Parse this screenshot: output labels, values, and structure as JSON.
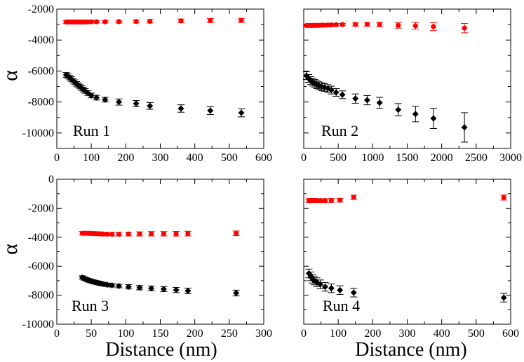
{
  "figure": {
    "shared_xlabel": "Distance (nm)",
    "shared_ylabel": "α"
  },
  "colors": {
    "red_series": "#ff0000",
    "black_series": "#000000"
  },
  "chart_data": [
    {
      "type": "scatter",
      "panel_label": "Run 1",
      "xlim": [
        0,
        600
      ],
      "ylim": [
        -11000,
        -2000
      ],
      "xticks": [
        0,
        100,
        200,
        300,
        400,
        500,
        600
      ],
      "yticks": [
        -10000,
        -8000,
        -6000,
        -4000,
        -2000
      ],
      "series": [
        {
          "color": "red",
          "marker": "circle",
          "x": [
            27,
            32,
            37,
            42,
            47,
            52,
            57,
            62,
            67,
            72,
            77,
            82,
            90,
            100,
            115,
            140,
            180,
            230,
            270,
            360,
            445,
            535
          ],
          "y": [
            -2830,
            -2830,
            -2830,
            -2830,
            -2830,
            -2830,
            -2830,
            -2830,
            -2830,
            -2830,
            -2830,
            -2830,
            -2830,
            -2820,
            -2820,
            -2820,
            -2810,
            -2800,
            -2790,
            -2760,
            -2740,
            -2730
          ],
          "err": [
            80,
            80,
            80,
            80,
            80,
            80,
            80,
            80,
            80,
            80,
            80,
            80,
            80,
            80,
            80,
            80,
            90,
            100,
            110,
            120,
            130,
            130
          ]
        },
        {
          "color": "black",
          "marker": "diamond",
          "x": [
            27,
            32,
            37,
            42,
            47,
            52,
            57,
            62,
            67,
            72,
            77,
            82,
            90,
            100,
            115,
            140,
            180,
            230,
            270,
            360,
            445,
            535
          ],
          "y": [
            -6250,
            -6320,
            -6420,
            -6520,
            -6630,
            -6720,
            -6830,
            -6920,
            -7000,
            -7100,
            -7190,
            -7280,
            -7420,
            -7580,
            -7720,
            -7850,
            -8000,
            -8100,
            -8250,
            -8420,
            -8560,
            -8700
          ],
          "err": [
            150,
            150,
            150,
            150,
            150,
            150,
            150,
            150,
            150,
            150,
            150,
            150,
            150,
            150,
            150,
            150,
            200,
            200,
            220,
            240,
            250,
            260
          ]
        }
      ]
    },
    {
      "type": "scatter",
      "panel_label": "Run 2",
      "xlim": [
        0,
        3000
      ],
      "ylim": [
        -11000,
        -2000
      ],
      "xticks": [
        0,
        500,
        1000,
        1500,
        2000,
        2500,
        3000
      ],
      "yticks": [],
      "series": [
        {
          "color": "red",
          "marker": "circle",
          "x": [
            40,
            70,
            100,
            130,
            160,
            190,
            220,
            260,
            300,
            350,
            400,
            470,
            560,
            750,
            920,
            1100,
            1370,
            1620,
            1880,
            2330
          ],
          "y": [
            -3060,
            -3060,
            -3060,
            -3060,
            -3050,
            -3050,
            -3050,
            -3040,
            -3040,
            -3030,
            -3020,
            -3010,
            -3000,
            -2990,
            -2980,
            -2990,
            -3050,
            -3080,
            -3130,
            -3230
          ],
          "err": [
            80,
            80,
            80,
            80,
            80,
            80,
            80,
            80,
            80,
            80,
            80,
            80,
            80,
            100,
            120,
            140,
            180,
            220,
            260,
            300
          ]
        },
        {
          "color": "black",
          "marker": "diamond",
          "x": [
            40,
            70,
            100,
            130,
            160,
            190,
            220,
            260,
            300,
            350,
            400,
            470,
            560,
            750,
            920,
            1100,
            1370,
            1620,
            1880,
            2330
          ],
          "y": [
            -6300,
            -6480,
            -6620,
            -6720,
            -6800,
            -6880,
            -6950,
            -7010,
            -7060,
            -7130,
            -7230,
            -7380,
            -7530,
            -7780,
            -7880,
            -8050,
            -8500,
            -8780,
            -9060,
            -9640
          ],
          "err": [
            250,
            250,
            250,
            250,
            250,
            250,
            250,
            250,
            250,
            250,
            250,
            250,
            250,
            300,
            300,
            350,
            400,
            500,
            650,
            950
          ]
        }
      ]
    },
    {
      "type": "scatter",
      "panel_label": "Run 3",
      "xlim": [
        0,
        300
      ],
      "ylim": [
        -10000,
        0
      ],
      "xticks": [
        0,
        50,
        100,
        150,
        200,
        250,
        300
      ],
      "yticks": [
        -10000,
        -8000,
        -6000,
        -4000,
        -2000,
        0
      ],
      "series": [
        {
          "color": "red",
          "marker": "circle",
          "x": [
            37,
            40,
            43,
            46,
            49,
            52,
            55,
            58,
            61,
            64,
            67,
            73,
            80,
            90,
            104,
            120,
            137,
            155,
            173,
            190,
            260
          ],
          "y": [
            -3730,
            -3730,
            -3730,
            -3730,
            -3740,
            -3740,
            -3750,
            -3760,
            -3760,
            -3770,
            -3780,
            -3790,
            -3790,
            -3790,
            -3780,
            -3770,
            -3760,
            -3760,
            -3760,
            -3750,
            -3730
          ],
          "err": [
            120,
            120,
            120,
            120,
            120,
            120,
            120,
            120,
            120,
            120,
            120,
            120,
            120,
            120,
            130,
            140,
            150,
            150,
            160,
            160,
            160
          ]
        },
        {
          "color": "black",
          "marker": "diamond",
          "x": [
            37,
            40,
            43,
            46,
            49,
            52,
            55,
            58,
            61,
            64,
            67,
            73,
            80,
            90,
            104,
            120,
            137,
            155,
            173,
            190,
            260
          ],
          "y": [
            -6780,
            -6850,
            -6920,
            -6970,
            -7020,
            -7060,
            -7100,
            -7130,
            -7170,
            -7200,
            -7230,
            -7280,
            -7320,
            -7370,
            -7420,
            -7480,
            -7530,
            -7580,
            -7640,
            -7700,
            -7850
          ],
          "err": [
            120,
            120,
            120,
            120,
            120,
            120,
            120,
            120,
            120,
            120,
            120,
            120,
            120,
            120,
            150,
            150,
            160,
            170,
            180,
            190,
            200
          ]
        }
      ]
    },
    {
      "type": "scatter",
      "panel_label": "Run 4",
      "xlim": [
        0,
        600
      ],
      "ylim": [
        -10000,
        0
      ],
      "xticks": [
        0,
        100,
        200,
        300,
        400,
        500,
        600
      ],
      "yticks": [],
      "series": [
        {
          "color": "red",
          "marker": "circle",
          "x": [
            15,
            20,
            25,
            30,
            38,
            48,
            62,
            80,
            105,
            145,
            580
          ],
          "y": [
            -1480,
            -1470,
            -1470,
            -1470,
            -1480,
            -1480,
            -1480,
            -1470,
            -1450,
            -1240,
            -1260
          ],
          "err": [
            130,
            130,
            130,
            130,
            130,
            130,
            130,
            130,
            130,
            150,
            180
          ]
        },
        {
          "color": "black",
          "marker": "diamond",
          "x": [
            15,
            20,
            25,
            30,
            38,
            48,
            62,
            80,
            105,
            145,
            580
          ],
          "y": [
            -6500,
            -6700,
            -6860,
            -6980,
            -7100,
            -7250,
            -7420,
            -7520,
            -7650,
            -7820,
            -8170
          ],
          "err": [
            300,
            300,
            300,
            300,
            300,
            300,
            300,
            300,
            300,
            300,
            300
          ]
        }
      ]
    }
  ]
}
